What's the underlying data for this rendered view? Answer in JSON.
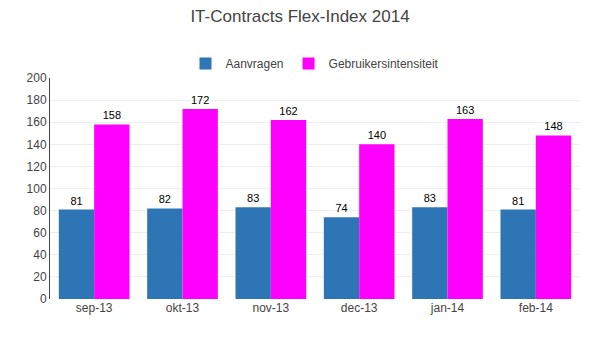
{
  "chart_data": {
    "type": "bar",
    "title": "IT-Contracts Flex-Index 2014",
    "categories": [
      "sep-13",
      "okt-13",
      "nov-13",
      "dec-13",
      "jan-14",
      "feb-14"
    ],
    "series": [
      {
        "name": "Aanvragen",
        "color": "#2E75B6",
        "values": [
          81,
          82,
          83,
          74,
          83,
          81
        ]
      },
      {
        "name": "Gebruikersintensiteit",
        "color": "#FF00FF",
        "values": [
          158,
          172,
          162,
          140,
          163,
          148
        ]
      }
    ],
    "ylim": [
      0,
      200
    ],
    "yticks": [
      0,
      20,
      40,
      60,
      80,
      100,
      120,
      140,
      160,
      180,
      200
    ],
    "grid": true,
    "data_labels": true,
    "legend": "top"
  }
}
